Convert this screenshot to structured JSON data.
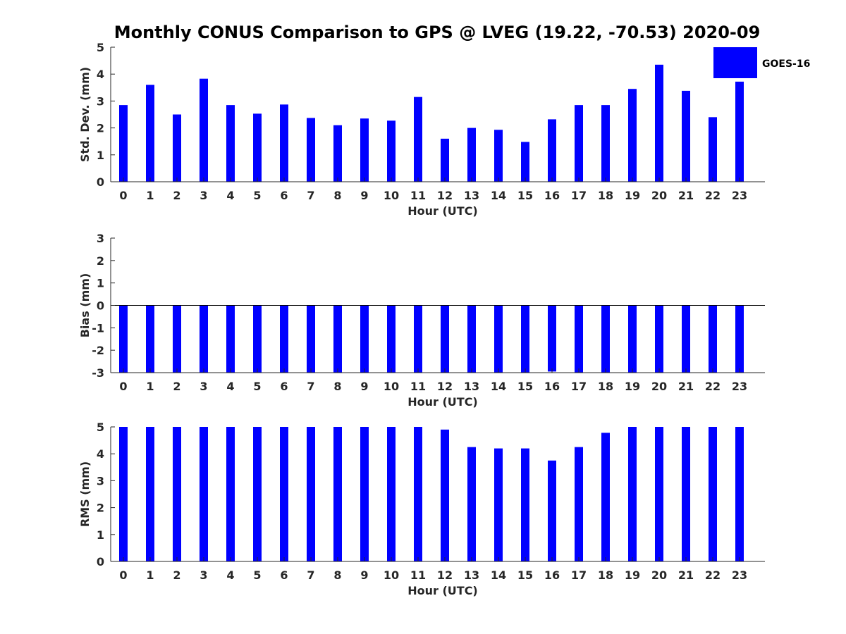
{
  "figure": {
    "title": "Monthly CONUS Comparison to GPS @ LVEG (19.22, -70.53) 2020-09",
    "legend": {
      "label": "GOES-16",
      "color": "#0000ff",
      "placement": "top-right"
    }
  },
  "chart_data": [
    {
      "type": "bar",
      "categories": [
        "0",
        "1",
        "2",
        "3",
        "4",
        "5",
        "6",
        "7",
        "8",
        "9",
        "10",
        "11",
        "12",
        "13",
        "14",
        "15",
        "16",
        "17",
        "18",
        "19",
        "20",
        "21",
        "22",
        "23"
      ],
      "series": [
        {
          "name": "GOES-16",
          "values": [
            2.85,
            3.6,
            2.5,
            3.83,
            2.85,
            2.53,
            2.87,
            2.37,
            2.1,
            2.35,
            2.27,
            3.15,
            1.6,
            2.0,
            1.93,
            1.48,
            2.32,
            2.85,
            2.85,
            3.45,
            4.35,
            3.38,
            2.4,
            3.72
          ]
        }
      ],
      "xlabel": "Hour (UTC)",
      "ylabel": "Std. Dev. (mm)",
      "ylim": [
        0,
        5
      ],
      "yticks": [
        "0",
        "1",
        "2",
        "3",
        "4",
        "5"
      ],
      "grid": false,
      "bar_color": "#0000ff"
    },
    {
      "type": "bar",
      "categories": [
        "0",
        "1",
        "2",
        "3",
        "4",
        "5",
        "6",
        "7",
        "8",
        "9",
        "10",
        "11",
        "12",
        "13",
        "14",
        "15",
        "16",
        "17",
        "18",
        "19",
        "20",
        "21",
        "22",
        "23"
      ],
      "series": [
        {
          "name": "GOES-16",
          "values": [
            -3,
            -3,
            -3,
            -3,
            -3,
            -3,
            -3,
            -3,
            -3,
            -3,
            -3,
            -3,
            -3,
            -3,
            -3,
            -3,
            -2.95,
            -3,
            -3,
            -3,
            -3,
            -3,
            -3,
            -3
          ]
        }
      ],
      "xlabel": "Hour (UTC)",
      "ylabel": "Bias (mm)",
      "ylim": [
        -3,
        3
      ],
      "yticks": [
        "-3",
        "-2",
        "-1",
        "0",
        "1",
        "2",
        "3"
      ],
      "zero_line": true,
      "grid": false,
      "bar_color": "#0000ff"
    },
    {
      "type": "bar",
      "categories": [
        "0",
        "1",
        "2",
        "3",
        "4",
        "5",
        "6",
        "7",
        "8",
        "9",
        "10",
        "11",
        "12",
        "13",
        "14",
        "15",
        "16",
        "17",
        "18",
        "19",
        "20",
        "21",
        "22",
        "23"
      ],
      "series": [
        {
          "name": "GOES-16",
          "values": [
            5,
            5,
            5,
            5,
            5,
            5,
            5,
            5,
            5,
            5,
            5,
            5,
            4.9,
            4.25,
            4.2,
            4.2,
            3.75,
            4.25,
            4.78,
            5,
            5,
            5,
            5,
            5
          ]
        }
      ],
      "xlabel": "Hour (UTC)",
      "ylabel": "RMS (mm)",
      "ylim": [
        0,
        5
      ],
      "yticks": [
        "0",
        "1",
        "2",
        "3",
        "4",
        "5"
      ],
      "grid": false,
      "bar_color": "#0000ff"
    }
  ]
}
